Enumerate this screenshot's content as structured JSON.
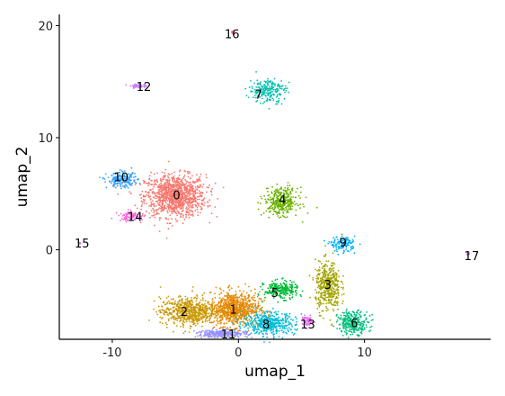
{
  "chart_data": {
    "type": "scatter",
    "title": "",
    "xlabel": "umap_1",
    "ylabel": "umap_2",
    "xlim": [
      -14.2,
      20.0
    ],
    "ylim": [
      -8.0,
      21.0
    ],
    "xticks": [
      -10,
      0,
      10
    ],
    "yticks": [
      0,
      10,
      20
    ],
    "grid": false,
    "legend": "none",
    "clusters": [
      {
        "id": "0",
        "color": "#F8766D",
        "center": [
          -5.0,
          4.8
        ],
        "spread": [
          2.2,
          1.7
        ],
        "points": 1100,
        "label_at": [
          -4.9,
          4.8
        ]
      },
      {
        "id": "1",
        "color": "#E58700",
        "center": [
          -0.3,
          -5.3
        ],
        "spread": [
          1.8,
          1.4
        ],
        "points": 800,
        "label_at": [
          -0.4,
          -5.4
        ]
      },
      {
        "id": "2",
        "color": "#C99800",
        "center": [
          -4.0,
          -5.5
        ],
        "spread": [
          2.0,
          1.1
        ],
        "points": 600,
        "label_at": [
          -4.3,
          -5.6
        ]
      },
      {
        "id": "3",
        "color": "#A3A500",
        "center": [
          7.1,
          -3.3
        ],
        "spread": [
          0.9,
          2.0
        ],
        "points": 450,
        "label_at": [
          7.1,
          -3.2
        ]
      },
      {
        "id": "4",
        "color": "#6BB100",
        "center": [
          3.4,
          4.3
        ],
        "spread": [
          1.2,
          1.1
        ],
        "points": 350,
        "label_at": [
          3.5,
          4.4
        ]
      },
      {
        "id": "5",
        "color": "#00BA38",
        "center": [
          3.4,
          -3.6
        ],
        "spread": [
          1.2,
          0.7
        ],
        "points": 250,
        "label_at": [
          2.9,
          -3.9
        ]
      },
      {
        "id": "6",
        "color": "#00BF7D",
        "center": [
          9.1,
          -6.5
        ],
        "spread": [
          1.1,
          0.9
        ],
        "points": 300,
        "label_at": [
          9.2,
          -6.6
        ]
      },
      {
        "id": "7",
        "color": "#00C0AF",
        "center": [
          2.3,
          14.2
        ],
        "spread": [
          1.3,
          1.0
        ],
        "points": 230,
        "label_at": [
          1.6,
          13.8
        ]
      },
      {
        "id": "8",
        "color": "#00BCD8",
        "center": [
          2.4,
          -6.6
        ],
        "spread": [
          1.9,
          0.9
        ],
        "points": 450,
        "label_at": [
          2.2,
          -6.7
        ]
      },
      {
        "id": "9",
        "color": "#00B0F6",
        "center": [
          8.3,
          0.5
        ],
        "spread": [
          0.9,
          0.6
        ],
        "points": 140,
        "label_at": [
          8.3,
          0.6
        ]
      },
      {
        "id": "10",
        "color": "#35A2FF",
        "center": [
          -9.2,
          6.2
        ],
        "spread": [
          1.1,
          0.6
        ],
        "points": 200,
        "label_at": [
          -9.3,
          6.4
        ]
      },
      {
        "id": "11",
        "color": "#9590FF",
        "center": [
          -1.3,
          -7.5
        ],
        "spread": [
          1.8,
          0.3
        ],
        "points": 240,
        "label_at": [
          -0.8,
          -7.6
        ]
      },
      {
        "id": "12",
        "color": "#C77CFF",
        "center": [
          -7.9,
          14.6
        ],
        "spread": [
          0.6,
          0.15
        ],
        "points": 60,
        "label_at": [
          -7.5,
          14.5
        ]
      },
      {
        "id": "13",
        "color": "#E76BF3",
        "center": [
          5.5,
          -6.4
        ],
        "spread": [
          0.4,
          0.4
        ],
        "points": 60,
        "label_at": [
          5.5,
          -6.7
        ]
      },
      {
        "id": "14",
        "color": "#FA62DB",
        "center": [
          -8.5,
          3.0
        ],
        "spread": [
          0.9,
          0.4
        ],
        "points": 80,
        "label_at": [
          -8.2,
          2.9
        ]
      },
      {
        "id": "15",
        "color": "#FF62BC",
        "center": [
          -12.6,
          0.6
        ],
        "spread": [
          0.12,
          0.12
        ],
        "points": 8,
        "label_at": [
          -12.4,
          0.5
        ]
      },
      {
        "id": "16",
        "color": "#FF6C91",
        "center": [
          -0.5,
          19.4
        ],
        "spread": [
          0.15,
          0.15
        ],
        "points": 8,
        "label_at": [
          -0.5,
          19.2
        ]
      },
      {
        "id": "17",
        "color": "#C77CFF",
        "center": [
          18.2,
          -0.4
        ],
        "spread": [
          0.12,
          0.12
        ],
        "points": 6,
        "label_at": [
          18.5,
          -0.6
        ]
      }
    ]
  }
}
